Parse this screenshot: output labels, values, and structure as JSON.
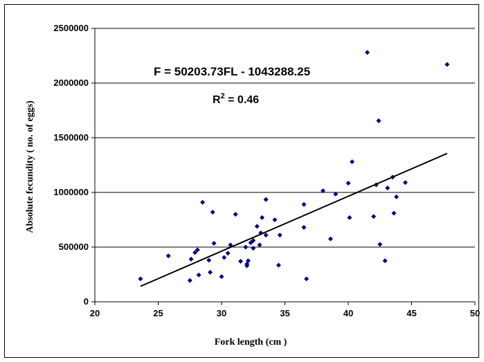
{
  "chart_data": {
    "type": "scatter",
    "title": "",
    "xlabel": "Fork length (cm )",
    "ylabel": "Absolute fecundity ( no. of eggs)",
    "xlim": [
      20,
      50
    ],
    "ylim": [
      0,
      2500000
    ],
    "xticks": [
      20,
      25,
      30,
      35,
      40,
      45,
      50
    ],
    "yticks": [
      0,
      500000,
      1000000,
      1500000,
      2000000,
      2500000
    ],
    "xtick_labels": [
      "20",
      "25",
      "30",
      "35",
      "40",
      "45",
      "50"
    ],
    "ytick_labels": [
      "0",
      "500000",
      "1000000",
      "1500000",
      "2000000",
      "2500000"
    ],
    "grid": "horizontal",
    "marker_color": "#00007f",
    "annotations": {
      "equation": "F = 50203.73FL - 1043288.25",
      "r2_prefix": "R",
      "r2_sup": "2",
      "r2_suffix": " = 0.46"
    },
    "trendline": {
      "x_start": 23.6,
      "x_end": 47.8,
      "slope": 50203.73,
      "intercept": -1043288.25
    },
    "series": [
      {
        "points": [
          [
            23.6,
            210000
          ],
          [
            25.8,
            420000
          ],
          [
            27.5,
            195000
          ],
          [
            27.6,
            390000
          ],
          [
            27.9,
            450000
          ],
          [
            28.1,
            475000
          ],
          [
            28.2,
            245000
          ],
          [
            28.5,
            910000
          ],
          [
            29.0,
            380000
          ],
          [
            29.1,
            270000
          ],
          [
            29.3,
            820000
          ],
          [
            29.4,
            535000
          ],
          [
            30.0,
            230000
          ],
          [
            30.2,
            405000
          ],
          [
            30.5,
            445000
          ],
          [
            30.7,
            520000
          ],
          [
            31.1,
            800000
          ],
          [
            31.5,
            370000
          ],
          [
            31.9,
            500000
          ],
          [
            32.0,
            330000
          ],
          [
            32.0,
            345000
          ],
          [
            32.1,
            375000
          ],
          [
            32.3,
            540000
          ],
          [
            32.5,
            490000
          ],
          [
            32.5,
            560000
          ],
          [
            32.8,
            690000
          ],
          [
            33.0,
            520000
          ],
          [
            33.1,
            630000
          ],
          [
            33.2,
            770000
          ],
          [
            33.5,
            610000
          ],
          [
            33.5,
            935000
          ],
          [
            34.2,
            750000
          ],
          [
            34.5,
            335000
          ],
          [
            34.6,
            610000
          ],
          [
            36.5,
            890000
          ],
          [
            36.5,
            680000
          ],
          [
            36.7,
            210000
          ],
          [
            38.0,
            1015000
          ],
          [
            38.6,
            575000
          ],
          [
            39.0,
            985000
          ],
          [
            40.0,
            1085000
          ],
          [
            40.1,
            770000
          ],
          [
            40.3,
            1280000
          ],
          [
            41.5,
            2280000
          ],
          [
            42.0,
            780000
          ],
          [
            42.2,
            1070000
          ],
          [
            42.4,
            1655000
          ],
          [
            42.5,
            525000
          ],
          [
            42.9,
            375000
          ],
          [
            43.1,
            1040000
          ],
          [
            43.5,
            1140000
          ],
          [
            43.6,
            810000
          ],
          [
            43.8,
            960000
          ],
          [
            44.5,
            1090000
          ],
          [
            47.8,
            2170000
          ]
        ]
      }
    ]
  }
}
